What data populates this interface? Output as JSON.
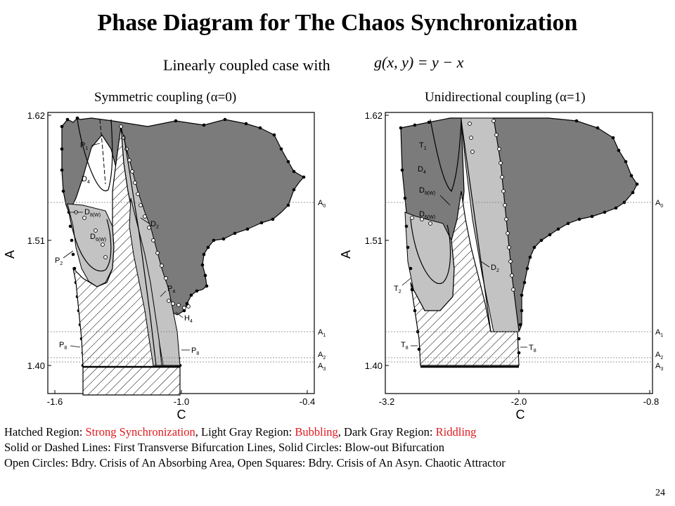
{
  "slide": {
    "title": "Phase Diagram for The Chaos Synchronization",
    "subtitle": "Linearly coupled case with",
    "formula": "g(x, y) = y − x",
    "page_number": "24"
  },
  "panels": [
    {
      "title": "Symmetric coupling (α=0)",
      "xlabel": "C",
      "ylabel": "A",
      "x_ticks": [
        "-1.6",
        "-1.0",
        "-0.4"
      ],
      "y_ticks": [
        "1.62",
        "1.51",
        "1.40"
      ],
      "right_labels": [
        {
          "main": "A",
          "sub": "0"
        },
        {
          "main": "A",
          "sub": "1"
        },
        {
          "main": "A",
          "sub": "2"
        },
        {
          "main": "A",
          "sub": "3"
        }
      ],
      "curve_labels": [
        {
          "main": "P",
          "sub": "1"
        },
        {
          "main": "D",
          "sub": "4"
        },
        {
          "main": "D",
          "sub": "8(W)"
        },
        {
          "main": "D",
          "sub": "2"
        },
        {
          "main": "D",
          "sub": "6(W)"
        },
        {
          "main": "P",
          "sub": "2"
        },
        {
          "main": "P",
          "sub": "4"
        },
        {
          "main": "H",
          "sub": "4"
        },
        {
          "main": "P",
          "sub": "8"
        },
        {
          "main": "P",
          "sub": "8"
        }
      ]
    },
    {
      "title": "Unidirectional coupling (α=1)",
      "xlabel": "C",
      "ylabel": "A",
      "x_ticks": [
        "-3.2",
        "-2.0",
        "-0.8"
      ],
      "y_ticks": [
        "1.62",
        "1.51",
        "1.40"
      ],
      "right_labels": [
        {
          "main": "A",
          "sub": "0"
        },
        {
          "main": "A",
          "sub": "1"
        },
        {
          "main": "A",
          "sub": "2"
        },
        {
          "main": "A",
          "sub": "3"
        }
      ],
      "curve_labels": [
        {
          "main": "T",
          "sub": "1"
        },
        {
          "main": "D",
          "sub": "4"
        },
        {
          "main": "D",
          "sub": "8(W)"
        },
        {
          "main": "D",
          "sub": "6(W)"
        },
        {
          "main": "D",
          "sub": "2"
        },
        {
          "main": "T",
          "sub": "2"
        },
        {
          "main": "T",
          "sub": "8"
        },
        {
          "main": "T",
          "sub": "8"
        }
      ]
    }
  ],
  "caption": {
    "line1_prefix_1": "Hatched Region: ",
    "line1_red_1": "Strong Synchronization",
    "line1_prefix_2": ", Light Gray Region: ",
    "line1_red_2": "Bubbling",
    "line1_prefix_3": ", Dark Gray Region: ",
    "line1_red_3": "Riddling",
    "line2": "Solid or Dashed Lines: First Transverse Bifurcation Lines, Solid Circles: Blow-out Bifurcation",
    "line3": "Open Circles: Bdry. Crisis of An Absorbing Area, Open Squares: Bdry. Crisis of An Asyn. Chaotic Attractor"
  },
  "colors": {
    "dark_gray": "#7b7b7b",
    "light_gray": "#c3c3c3",
    "highlight_red": "#e0191e"
  }
}
